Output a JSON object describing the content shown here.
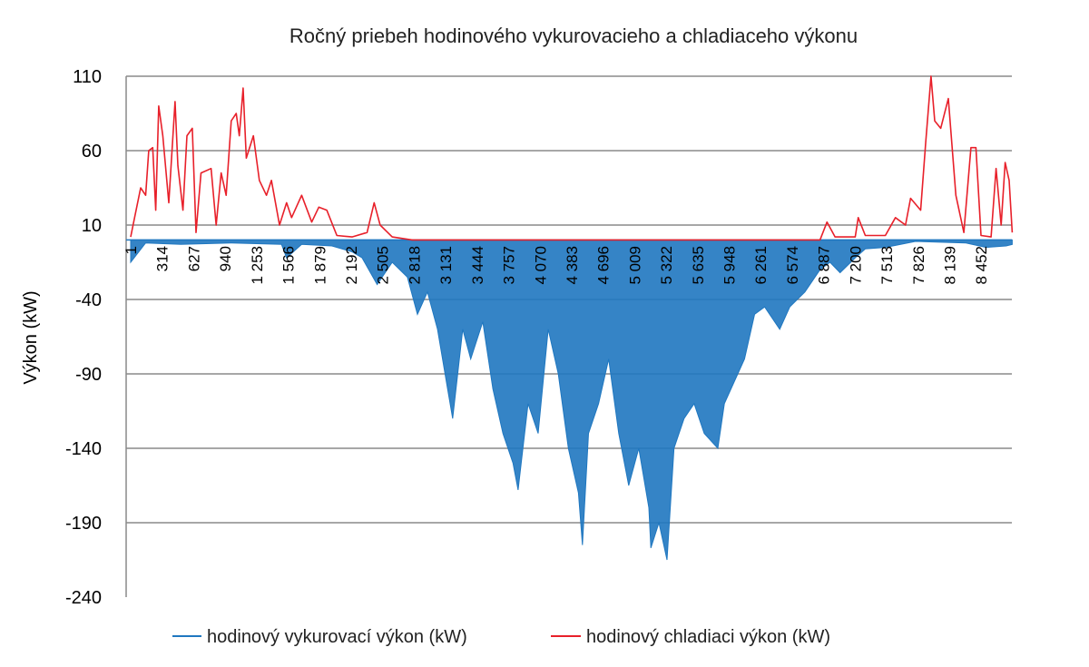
{
  "chart_data": {
    "type": "line",
    "title": "Ročný priebeh hodinového vykurovacieho a chladiaceho výkonu",
    "xlabel": "",
    "ylabel": "Výkon (kW)",
    "ylim": [
      -240,
      110
    ],
    "yticks": [
      110,
      60,
      10,
      -40,
      -90,
      -140,
      -190,
      -240
    ],
    "xlim": [
      1,
      8760
    ],
    "xtick_labels": [
      "1",
      "314",
      "627",
      "940",
      "1 253",
      "1 566",
      "1 879",
      "2 192",
      "2 505",
      "2 818",
      "3 131",
      "3 444",
      "3 757",
      "4 070",
      "4 383",
      "4 696",
      "5 009",
      "5 322",
      "5 635",
      "5 948",
      "6 261",
      "6 574",
      "6 887",
      "7 200",
      "7 513",
      "7 826",
      "8 139",
      "8 452"
    ],
    "xtick_values": [
      1,
      314,
      627,
      940,
      1253,
      1566,
      1879,
      2192,
      2505,
      2818,
      3131,
      3444,
      3757,
      4070,
      4383,
      4696,
      5009,
      5322,
      5635,
      5948,
      6261,
      6574,
      6887,
      7200,
      7513,
      7826,
      8139,
      8452
    ],
    "grid": true,
    "legend_position": "bottom",
    "series": [
      {
        "name": "hodinový vykurovací výkon (kW)",
        "color": "#1f77c0",
        "points": [
          [
            1,
            -15
          ],
          [
            150,
            -2
          ],
          [
            500,
            -3
          ],
          [
            1000,
            -2
          ],
          [
            1500,
            -3
          ],
          [
            1550,
            -12
          ],
          [
            1700,
            -3
          ],
          [
            2000,
            -4
          ],
          [
            2200,
            -8
          ],
          [
            2300,
            -12
          ],
          [
            2450,
            -30
          ],
          [
            2600,
            -15
          ],
          [
            2750,
            -25
          ],
          [
            2850,
            -50
          ],
          [
            2950,
            -35
          ],
          [
            3050,
            -60
          ],
          [
            3150,
            -100
          ],
          [
            3200,
            -120
          ],
          [
            3300,
            -60
          ],
          [
            3380,
            -80
          ],
          [
            3500,
            -55
          ],
          [
            3600,
            -100
          ],
          [
            3700,
            -130
          ],
          [
            3800,
            -150
          ],
          [
            3850,
            -168
          ],
          [
            3950,
            -110
          ],
          [
            4050,
            -130
          ],
          [
            4150,
            -60
          ],
          [
            4250,
            -90
          ],
          [
            4350,
            -140
          ],
          [
            4450,
            -170
          ],
          [
            4490,
            -205
          ],
          [
            4550,
            -130
          ],
          [
            4650,
            -110
          ],
          [
            4750,
            -80
          ],
          [
            4850,
            -130
          ],
          [
            4950,
            -165
          ],
          [
            5050,
            -140
          ],
          [
            5150,
            -180
          ],
          [
            5170,
            -207
          ],
          [
            5250,
            -190
          ],
          [
            5330,
            -215
          ],
          [
            5400,
            -140
          ],
          [
            5500,
            -120
          ],
          [
            5600,
            -110
          ],
          [
            5700,
            -130
          ],
          [
            5835,
            -140
          ],
          [
            5900,
            -110
          ],
          [
            6000,
            -95
          ],
          [
            6100,
            -80
          ],
          [
            6200,
            -50
          ],
          [
            6300,
            -45
          ],
          [
            6450,
            -60
          ],
          [
            6550,
            -45
          ],
          [
            6700,
            -35
          ],
          [
            6850,
            -20
          ],
          [
            6950,
            -15
          ],
          [
            7050,
            -22
          ],
          [
            7200,
            -12
          ],
          [
            7300,
            -6
          ],
          [
            7500,
            -5
          ],
          [
            7800,
            -1
          ],
          [
            8300,
            -2
          ],
          [
            8500,
            -5
          ],
          [
            8700,
            -4
          ],
          [
            8760,
            -3
          ]
        ]
      },
      {
        "name": "hodinový chladiaci výkon (kW)",
        "color": "#e8202a",
        "points": [
          [
            1,
            2
          ],
          [
            40,
            15
          ],
          [
            100,
            35
          ],
          [
            150,
            30
          ],
          [
            180,
            60
          ],
          [
            220,
            62
          ],
          [
            250,
            20
          ],
          [
            280,
            90
          ],
          [
            320,
            70
          ],
          [
            380,
            25
          ],
          [
            442,
            93
          ],
          [
            470,
            50
          ],
          [
            520,
            20
          ],
          [
            560,
            70
          ],
          [
            613,
            75
          ],
          [
            650,
            5
          ],
          [
            700,
            45
          ],
          [
            800,
            48
          ],
          [
            850,
            10
          ],
          [
            900,
            45
          ],
          [
            950,
            30
          ],
          [
            1000,
            80
          ],
          [
            1050,
            85
          ],
          [
            1080,
            70
          ],
          [
            1118,
            102
          ],
          [
            1150,
            55
          ],
          [
            1220,
            70
          ],
          [
            1280,
            40
          ],
          [
            1350,
            30
          ],
          [
            1400,
            40
          ],
          [
            1480,
            10
          ],
          [
            1550,
            25
          ],
          [
            1600,
            15
          ],
          [
            1700,
            30
          ],
          [
            1800,
            12
          ],
          [
            1870,
            22
          ],
          [
            1950,
            20
          ],
          [
            2050,
            3
          ],
          [
            2200,
            2
          ],
          [
            2350,
            5
          ],
          [
            2420,
            25
          ],
          [
            2480,
            10
          ],
          [
            2600,
            2
          ],
          [
            2800,
            0
          ],
          [
            6850,
            0
          ],
          [
            6920,
            12
          ],
          [
            7000,
            2
          ],
          [
            7200,
            2
          ],
          [
            7230,
            15
          ],
          [
            7300,
            3
          ],
          [
            7500,
            3
          ],
          [
            7600,
            15
          ],
          [
            7700,
            10
          ],
          [
            7750,
            28
          ],
          [
            7850,
            20
          ],
          [
            7900,
            65
          ],
          [
            7953,
            110
          ],
          [
            7990,
            80
          ],
          [
            8050,
            75
          ],
          [
            8125,
            95
          ],
          [
            8200,
            30
          ],
          [
            8280,
            5
          ],
          [
            8350,
            62
          ],
          [
            8400,
            62
          ],
          [
            8450,
            3
          ],
          [
            8550,
            2
          ],
          [
            8600,
            48
          ],
          [
            8650,
            10
          ],
          [
            8690,
            52
          ],
          [
            8730,
            40
          ],
          [
            8760,
            5
          ]
        ]
      }
    ]
  }
}
